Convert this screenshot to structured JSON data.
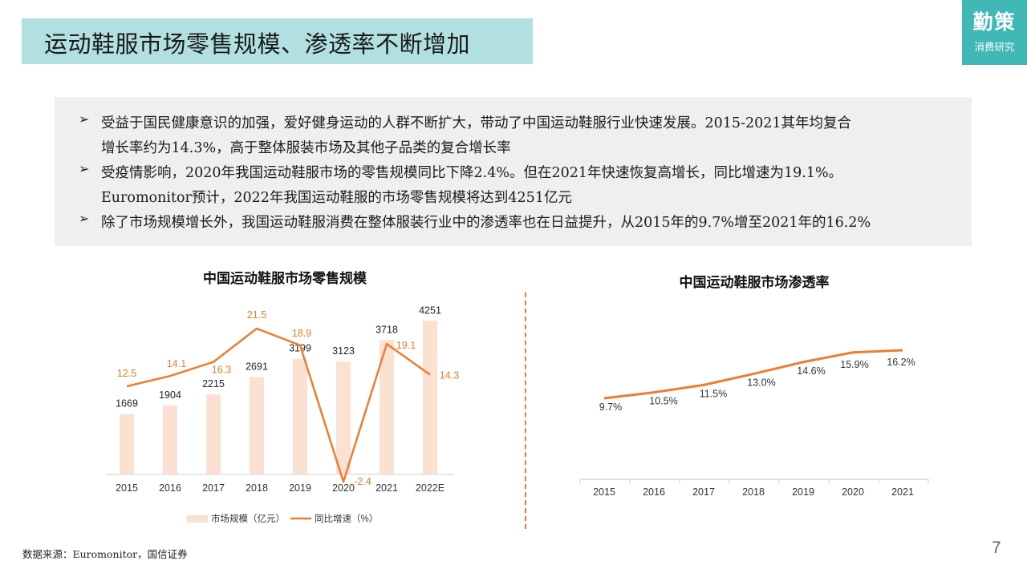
{
  "header": {
    "title": "运动鞋服市场零售规模、渗透率不断增加",
    "logo_main": "勤策",
    "logo_sub": "消费研究"
  },
  "summary": {
    "bullets": [
      {
        "lines": [
          "受益于国民健康意识的加强，爱好健身运动的人群不断扩大，带动了中国运动鞋服行业快速发展。2015-2021其年均复合",
          "增长率约为14.3%，高于整体服装市场及其他子品类的复合增长率"
        ]
      },
      {
        "lines": [
          "受疫情影响，2020年我国运动鞋服市场的零售规模同比下降2.4%。但在2021年快速恢复高增长，同比增速为19.1%。",
          "Euromonitor预计，2022年我国运动鞋服的市场零售规模将达到4251亿元"
        ]
      },
      {
        "lines": [
          "除了市场规模增长外，我国运动鞋服消费在整体服装行业中的渗透率也在日益提升，从2015年的9.7%增至2021年的16.2%"
        ]
      }
    ]
  },
  "chart_data": [
    {
      "type": "bar",
      "title": "中国运动鞋服市场零售规模",
      "categories": [
        "2015",
        "2016",
        "2017",
        "2018",
        "2019",
        "2020",
        "2021",
        "2022E"
      ],
      "series": [
        {
          "name": "市场规模（亿元）",
          "type": "bar",
          "values": [
            1669,
            1904,
            2215,
            2691,
            3199,
            3123,
            3718,
            4251
          ],
          "color": "#fbe1d1"
        },
        {
          "name": "同比增速（%）",
          "type": "line",
          "values": [
            12.5,
            14.1,
            16.3,
            21.5,
            18.9,
            -2.4,
            19.1,
            14.3
          ],
          "color": "#ed7d31"
        }
      ],
      "legend": "bottom",
      "grid": false
    },
    {
      "type": "line",
      "title": "中国运动鞋服市场渗透率",
      "categories": [
        "2015",
        "2016",
        "2017",
        "2018",
        "2019",
        "2020",
        "2021"
      ],
      "series": [
        {
          "values": [
            9.7,
            10.5,
            11.5,
            13.0,
            14.6,
            15.9,
            16.2
          ],
          "labels": [
            "9.7%",
            "10.5%",
            "11.5%",
            "13.0%",
            "14.6%",
            "15.9%",
            "16.2%"
          ],
          "color": "#ed7d31"
        }
      ],
      "grid": false
    }
  ],
  "footer": {
    "source": "数据来源：Euromonitor，国信证券",
    "page": "7"
  },
  "colors": {
    "accent": "#3fb8b6",
    "title_bg": "#b2dfe0",
    "orange": "#ed7d31",
    "bar": "#fbe1d1",
    "divider": "#ed7d31"
  }
}
